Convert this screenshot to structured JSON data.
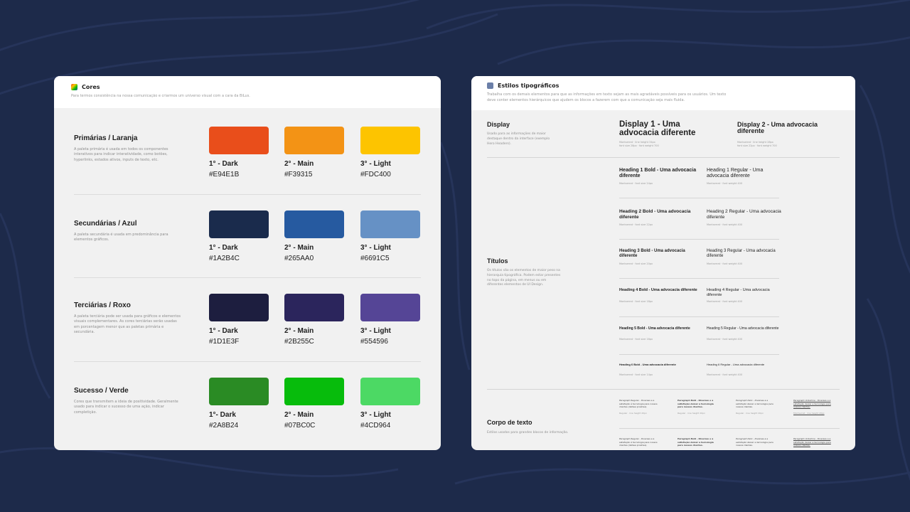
{
  "colors_card": {
    "title": "Cores",
    "description": "Para termos consistência na nossa comunicação e criarmos um universo visual com a cara da BiLus.",
    "palettes": [
      {
        "name": "Primárias / Laranja",
        "description": "A paleta primária é usada em todos os componentes interativos para indicar interatividade, como botões, hyperlinks, estados ativos, inputs de texto, etc.",
        "swatches": [
          {
            "label": "1° - Dark",
            "hex": "#E94E1B"
          },
          {
            "label": "2° - Main",
            "hex": "#F39315"
          },
          {
            "label": "3° - Light",
            "hex": "#FDC400"
          }
        ]
      },
      {
        "name": "Secundárias / Azul",
        "description": "A paleta secundária é usada em predominância para elementos gráficos.",
        "swatches": [
          {
            "label": "1° - Dark",
            "hex": "#1A2B4C"
          },
          {
            "label": "2° - Main",
            "hex": "#265AA0"
          },
          {
            "label": "3° - Light",
            "hex": "#6691C5"
          }
        ]
      },
      {
        "name": "Terciárias / Roxo",
        "description": "A paleta terciária pode ser usada para gráficos e elementos visuais complementares. As cores terciárias serão usadas em porcentagem menor que as paletas primária e secundária.",
        "swatches": [
          {
            "label": "1° - Dark",
            "hex": "#1D1E3F"
          },
          {
            "label": "2° - Main",
            "hex": "#2B255C"
          },
          {
            "label": "3° - Light",
            "hex": "#554596"
          }
        ]
      },
      {
        "name": "Sucesso / Verde",
        "description": "Cores que transmitem a ideia de positividade. Geralmente usado para indicar o sucesso de uma ação, indicar completição.",
        "swatches": [
          {
            "label": "1°- Dark",
            "hex": "#2A8B24"
          },
          {
            "label": "2° - Main",
            "hex": "#07BC0C"
          },
          {
            "label": "3° - Light",
            "hex": "#4CD964"
          }
        ]
      }
    ]
  },
  "type_card": {
    "title": "Estilos tipográficos",
    "description": "Trabalha com os demais elementos para que as informações em texto sejam as mais agradáveis possíveis para os usuários. Um texto deve conter elementos hierárquicos que ajudem os blocos a fazerem com que a comunicação seja mais fluida.",
    "display": {
      "label": "Display",
      "description": "Usado para as informações de maior destaque dentro da interface (exemplo Hero Headers).",
      "samples": [
        {
          "text": "Display 1 - Uma advocacia diferente",
          "meta1": "Montserrat · line height 34px",
          "meta2": "font size 28px · font weight 700"
        },
        {
          "text": "Display 2 - Uma advocacia diferente",
          "meta1": "Montserrat · line height 28px",
          "meta2": "font size 22px · font weight 700"
        }
      ]
    },
    "titles": {
      "label": "Títulos",
      "description": "Os títulos são os elementos de maior peso na hierarquia tipográfica. Podem estar presentes no topo da página, em menus ou em diferentes elementos de UI Design.",
      "rows": [
        {
          "bold": "Heading 1 Bold - Uma advocacia diferente",
          "regular": "Heading 1 Regular - Uma advocacia diferente",
          "meta_b": "Montserrat · font size 24px",
          "meta_r": "Montserrat · font weight 400"
        },
        {
          "bold": "Heading 2 Bold - Uma advocacia diferente",
          "regular": "Heading 2 Regular - Uma advocacia diferente",
          "meta_b": "Montserrat · font size 22px",
          "meta_r": "Montserrat · font weight 400"
        },
        {
          "bold": "Heading 3 Bold - Uma advocacia diferente",
          "regular": "Heading 3 Regular - Uma advocacia diferente",
          "meta_b": "Montserrat · font size 20px",
          "meta_r": "Montserrat · font weight 400"
        },
        {
          "bold": "Heading 4 Bold - Uma advocacia diferente",
          "regular": "Heading 4 Regular - Uma advocacia diferente",
          "meta_b": "Montserrat · font size 18px",
          "meta_r": "Montserrat · font weight 400"
        },
        {
          "bold": "Heading 5 Bold - Uma advocacia diferente",
          "regular": "Heading 5 Regular - Uma advocacia diferente",
          "meta_b": "Montserrat · font size 16px",
          "meta_r": "Montserrat · font weight 400"
        },
        {
          "bold": "Heading 6 Bold - Uma advocacia diferente",
          "regular": "Heading 6 Regular - Uma advocacia diferente",
          "meta_b": "Montserrat · font size 14px",
          "meta_r": "Montserrat · font weight 400"
        }
      ]
    },
    "body_text": {
      "label": "Corpo de texto",
      "description": "Estilos usados para grandes blocos de informação.",
      "samples": [
        {
          "text": "Paragraph Regular - Diversas e a satisfação é tecnologia para nossos clientes (defesa proativa).",
          "meta": "Regular · line height 20px"
        },
        {
          "text": "Paragraph Bold - Diversas e a satisfação deixar a tecnologia para nossos clientes.",
          "meta": "Regular · line height 20px"
        },
        {
          "text": "Paragraph Italic - Diversas e a satisfação deixar a tecnologia para nossos clientes.",
          "meta": "Regular · line height 20px"
        },
        {
          "text": "Paragraph Underline - Diversas e a satisfação deixar a tecnologia para nossos clientes.",
          "meta": "Montserrat · line height 20px"
        }
      ]
    }
  }
}
